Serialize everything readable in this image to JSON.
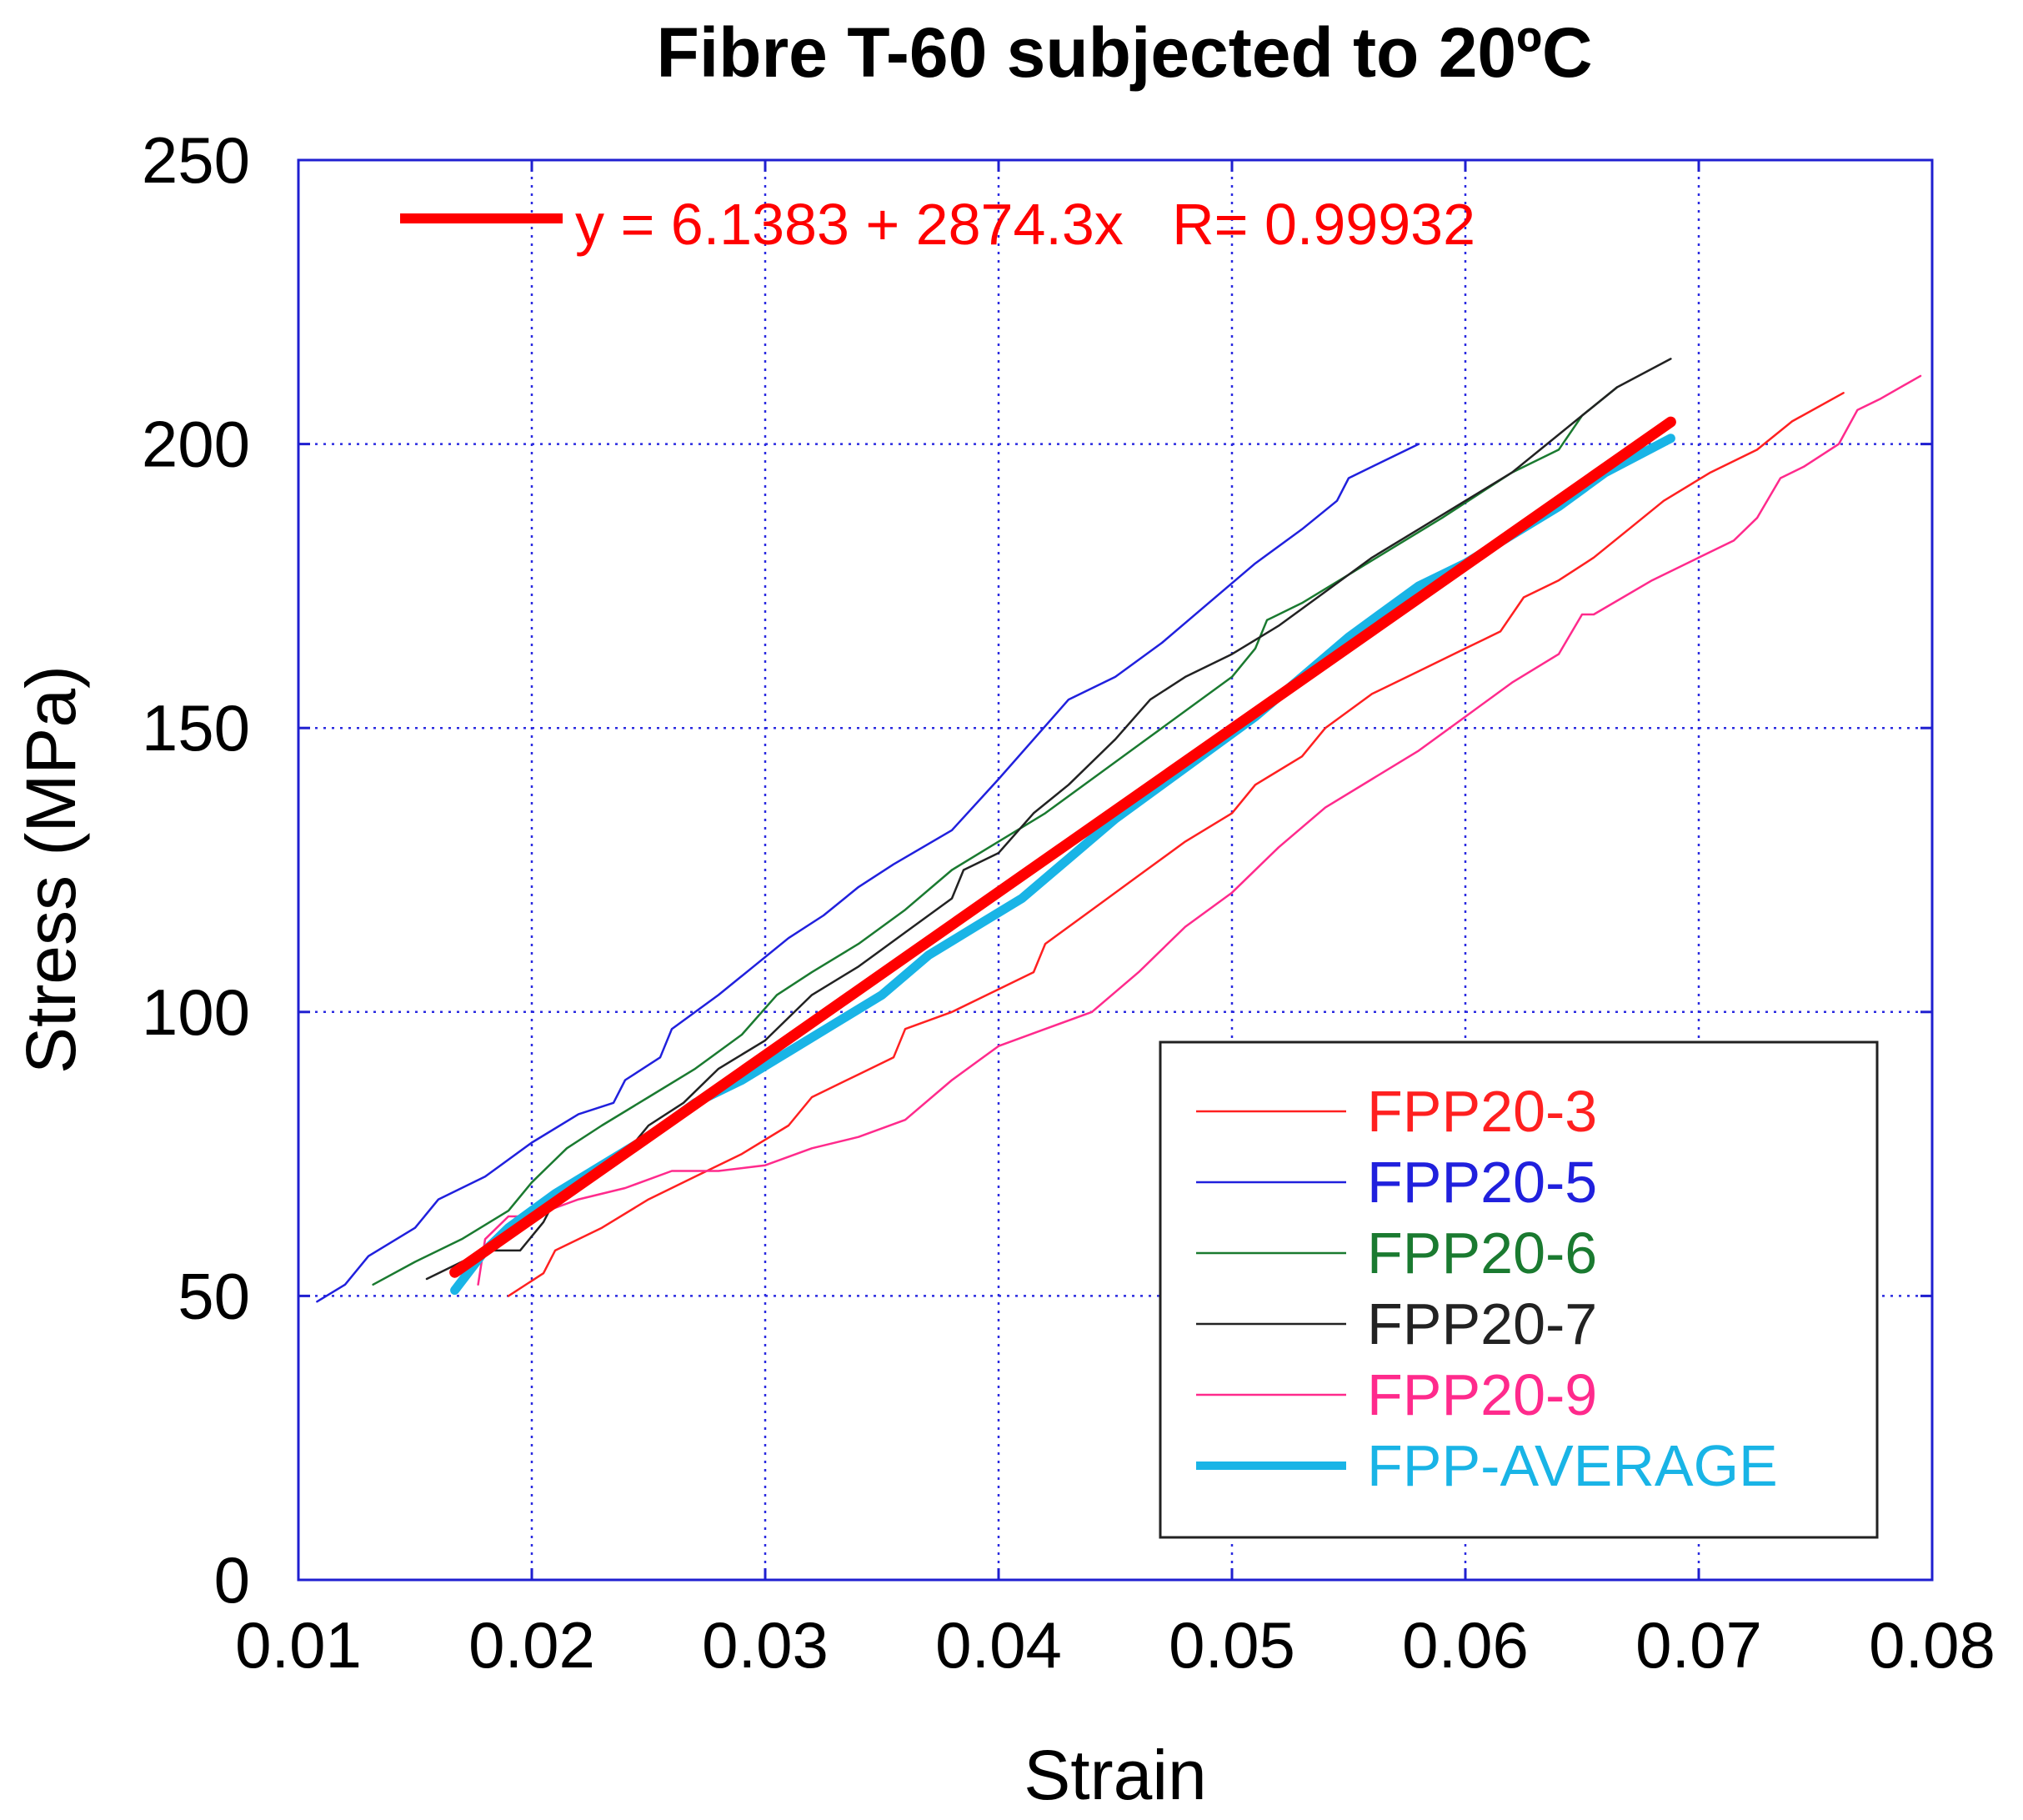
{
  "chart_data": {
    "type": "line",
    "title": "Fibre T-60 subjected to 20ºC",
    "xlabel": "Strain",
    "ylabel": "Stress (MPa)",
    "xlim": [
      0.01,
      0.08
    ],
    "ylim": [
      0,
      250
    ],
    "xticks": [
      0.01,
      0.02,
      0.03,
      0.04,
      0.05,
      0.06,
      0.07,
      0.08
    ],
    "xtick_labels": [
      "0.01",
      "0.02",
      "0.03",
      "0.04",
      "0.05",
      "0.06",
      "0.07",
      "0.08"
    ],
    "yticks": [
      0,
      50,
      100,
      150,
      200,
      250
    ],
    "ytick_labels": [
      "0",
      "50",
      "100",
      "150",
      "200",
      "250"
    ],
    "grid": true,
    "legend_position": "bottom-right",
    "fit": {
      "label": "y = 6.1383 + 2874.3x   R= 0.99932",
      "intercept": 6.1383,
      "slope": 2874.3,
      "x_range": [
        0.0167,
        0.0688
      ],
      "color": "#ff0000"
    },
    "series": [
      {
        "name": "FPP20-3",
        "color": "#ff2020",
        "width": 2.5,
        "x": [
          0.019,
          0.0205,
          0.021,
          0.023,
          0.025,
          0.027,
          0.029,
          0.031,
          0.032,
          0.034,
          0.0355,
          0.036,
          0.038,
          0.0395,
          0.0415,
          0.042,
          0.044,
          0.046,
          0.048,
          0.05,
          0.051,
          0.053,
          0.054,
          0.056,
          0.058,
          0.06,
          0.0615,
          0.0625,
          0.064,
          0.0655,
          0.067,
          0.0685,
          0.0705,
          0.0725,
          0.074,
          0.0762
        ],
        "y": [
          50,
          54,
          58,
          62,
          67,
          71,
          75,
          80,
          85,
          89,
          92,
          97,
          100,
          103,
          107,
          112,
          118,
          124,
          130,
          135,
          140,
          145,
          150,
          156,
          160,
          164,
          167,
          173,
          176,
          180,
          185,
          190,
          195,
          199,
          204,
          209
        ]
      },
      {
        "name": "FPP20-5",
        "color": "#2020dd",
        "width": 2.5,
        "x": [
          0.0108,
          0.012,
          0.013,
          0.015,
          0.016,
          0.018,
          0.02,
          0.022,
          0.0235,
          0.024,
          0.0255,
          0.026,
          0.028,
          0.0295,
          0.031,
          0.0325,
          0.034,
          0.0355,
          0.038,
          0.04,
          0.0415,
          0.043,
          0.045,
          0.047,
          0.049,
          0.051,
          0.053,
          0.0545,
          0.055,
          0.0565,
          0.058
        ],
        "y": [
          49,
          52,
          57,
          62,
          67,
          71,
          77,
          82,
          84,
          88,
          92,
          97,
          103,
          108,
          113,
          117,
          122,
          126,
          132,
          141,
          148,
          155,
          159,
          165,
          172,
          179,
          185,
          190,
          194,
          197,
          200
        ]
      },
      {
        "name": "FPP20-6",
        "color": "#1a7a30",
        "width": 2.5,
        "x": [
          0.0132,
          0.015,
          0.017,
          0.019,
          0.02,
          0.0215,
          0.023,
          0.025,
          0.027,
          0.029,
          0.0305,
          0.032,
          0.034,
          0.036,
          0.038,
          0.04,
          0.042,
          0.044,
          0.046,
          0.048,
          0.05,
          0.051,
          0.0515,
          0.053,
          0.055,
          0.057,
          0.059,
          0.0605,
          0.062,
          0.064,
          0.065,
          0.0665
        ],
        "y": [
          52,
          56,
          60,
          65,
          70,
          76,
          80,
          85,
          90,
          96,
          103,
          107,
          112,
          118,
          125,
          130,
          135,
          141,
          147,
          153,
          159,
          164,
          169,
          172,
          177,
          182,
          187,
          191,
          195,
          199,
          205,
          210
        ]
      },
      {
        "name": "FPP20-7",
        "color": "#222222",
        "width": 2.5,
        "x": [
          0.0155,
          0.017,
          0.018,
          0.0195,
          0.0205,
          0.021,
          0.0225,
          0.024,
          0.025,
          0.0265,
          0.028,
          0.03,
          0.032,
          0.034,
          0.036,
          0.038,
          0.0385,
          0.04,
          0.0415,
          0.043,
          0.045,
          0.0465,
          0.048,
          0.05,
          0.052,
          0.054,
          0.056,
          0.058,
          0.06,
          0.062,
          0.0635,
          0.065,
          0.0665,
          0.0688
        ],
        "y": [
          53,
          56,
          58,
          58,
          63,
          67,
          70,
          75,
          80,
          84,
          90,
          95,
          103,
          108,
          114,
          120,
          125,
          128,
          135,
          140,
          148,
          155,
          159,
          163,
          168,
          174,
          180,
          185,
          190,
          195,
          200,
          205,
          210,
          215
        ]
      },
      {
        "name": "FPP20-9",
        "color": "#ff2a8c",
        "width": 2.5,
        "x": [
          0.0177,
          0.018,
          0.019,
          0.02,
          0.022,
          0.024,
          0.026,
          0.028,
          0.03,
          0.032,
          0.034,
          0.036,
          0.038,
          0.04,
          0.042,
          0.044,
          0.046,
          0.048,
          0.05,
          0.052,
          0.054,
          0.056,
          0.058,
          0.06,
          0.062,
          0.064,
          0.065,
          0.0655,
          0.068,
          0.07,
          0.0715,
          0.0725,
          0.0735,
          0.0745,
          0.076,
          0.0768,
          0.0778,
          0.0795
        ],
        "y": [
          52,
          60,
          64,
          64,
          67,
          69,
          72,
          72,
          73,
          76,
          78,
          81,
          88,
          94,
          97,
          100,
          107,
          115,
          121,
          129,
          136,
          141,
          146,
          152,
          158,
          163,
          170,
          170,
          176,
          180,
          183,
          187,
          194,
          196,
          200,
          206,
          208,
          212
        ]
      },
      {
        "name": "FPP-AVERAGE",
        "color": "#19b4e6",
        "width": 11,
        "x": [
          0.0167,
          0.018,
          0.019,
          0.021,
          0.023,
          0.025,
          0.027,
          0.029,
          0.031,
          0.033,
          0.035,
          0.037,
          0.039,
          0.041,
          0.043,
          0.045,
          0.047,
          0.049,
          0.051,
          0.053,
          0.055,
          0.057,
          0.058,
          0.06,
          0.062,
          0.064,
          0.066,
          0.0688
        ],
        "y": [
          51,
          58,
          62,
          68,
          73,
          78,
          84,
          88,
          93,
          98,
          103,
          110,
          115,
          120,
          127,
          134,
          140,
          146,
          152,
          159,
          166,
          172,
          175,
          179,
          184,
          189,
          195,
          201
        ]
      }
    ]
  }
}
